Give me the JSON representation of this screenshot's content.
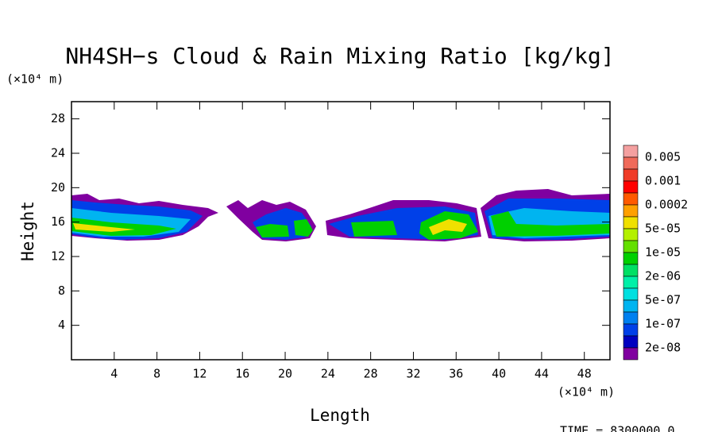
{
  "chart_data": {
    "type": "contour",
    "title": "NH4SH−s Cloud & Rain Mixing Ratio [kg/kg]",
    "x_label": "Length",
    "y_label": "Height",
    "x_unit": "(×10⁴ m)",
    "y_unit": "(×10⁴ m)",
    "time_label": "TIME = 8300000.0",
    "xlim": [
      0,
      50.4
    ],
    "ylim": [
      0,
      30
    ],
    "xticks": [
      4,
      8,
      12,
      16,
      20,
      24,
      28,
      32,
      36,
      40,
      44,
      48
    ],
    "yticks": [
      4,
      8,
      12,
      16,
      20,
      24,
      28
    ],
    "colorbar": {
      "colors": [
        "#f4a0a0",
        "#f06a5a",
        "#f03c28",
        "#ff0000",
        "#ff5a00",
        "#ffa000",
        "#f0e000",
        "#b4f000",
        "#64e000",
        "#00d000",
        "#00e064",
        "#00f0a8",
        "#00e0e0",
        "#00b4f0",
        "#0080f0",
        "#0040e8",
        "#0000c0",
        "#8000a0"
      ],
      "labels": [
        "0.005",
        "0.001",
        "0.0002",
        "5e-05",
        "1e-05",
        "2e-06",
        "5e-07",
        "1e-07",
        "2e-08"
      ]
    }
  }
}
